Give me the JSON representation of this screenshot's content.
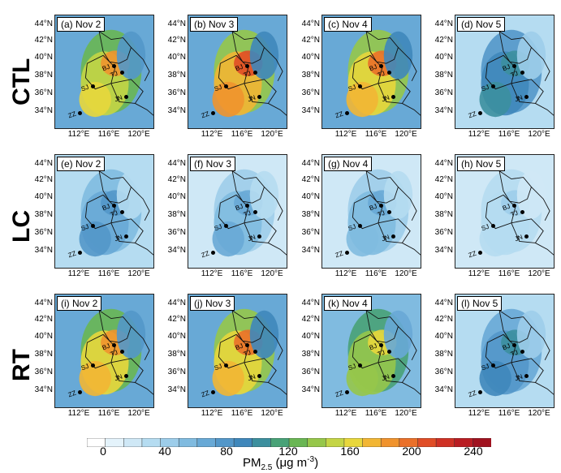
{
  "row_labels": [
    "CTL",
    "LC",
    "RT"
  ],
  "panels": [
    {
      "title": "(a) Nov 2",
      "row": 0,
      "col": 0,
      "intensity": 0.75
    },
    {
      "title": "(b) Nov 3",
      "row": 0,
      "col": 1,
      "intensity": 0.85
    },
    {
      "title": "(c) Nov 4",
      "row": 0,
      "col": 2,
      "intensity": 0.8
    },
    {
      "title": "(d) Nov 5",
      "row": 0,
      "col": 3,
      "intensity": 0.45
    },
    {
      "title": "(e) Nov 2",
      "row": 1,
      "col": 0,
      "intensity": 0.35
    },
    {
      "title": "(f) Nov 3",
      "row": 1,
      "col": 1,
      "intensity": 0.3
    },
    {
      "title": "(g) Nov 4",
      "row": 1,
      "col": 2,
      "intensity": 0.28
    },
    {
      "title": "(h) Nov 5",
      "row": 1,
      "col": 3,
      "intensity": 0.18
    },
    {
      "title": "(i) Nov 2",
      "row": 2,
      "col": 0,
      "intensity": 0.78
    },
    {
      "title": "(j) Nov 3",
      "row": 2,
      "col": 1,
      "intensity": 0.8
    },
    {
      "title": "(k) Nov 4",
      "row": 2,
      "col": 2,
      "intensity": 0.65
    },
    {
      "title": "(l) Nov 5",
      "row": 2,
      "col": 3,
      "intensity": 0.42
    }
  ],
  "lat_labels": [
    "44°N",
    "42°N",
    "40°N",
    "38°N",
    "36°N",
    "34°N"
  ],
  "lon_labels": [
    "112°E",
    "116°E",
    "120°E"
  ],
  "city_labels": [
    "BJ",
    "TJ",
    "SJ",
    "JN",
    "ZZ"
  ],
  "colorbar": {
    "ticks": [
      "0",
      "40",
      "80",
      "120",
      "160",
      "200",
      "240"
    ],
    "colors": [
      "#ffffff",
      "#e4f3fb",
      "#cfe8f6",
      "#b5dcf1",
      "#9dcdea",
      "#80bbe0",
      "#68a9d6",
      "#5397c9",
      "#3f87bb",
      "#3c8f9e",
      "#48a277",
      "#69b653",
      "#96c74a",
      "#c4d545",
      "#e8d73c",
      "#f2b634",
      "#f0932d",
      "#ea7029",
      "#e04d26",
      "#cf3125",
      "#b91d23",
      "#a0121f"
    ],
    "label": "PM",
    "label_sub": "2.5",
    "label_unit": " (μg m",
    "label_sup": "-3",
    "label_end": ")"
  }
}
